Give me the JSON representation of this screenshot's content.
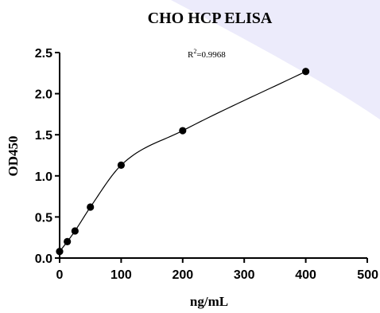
{
  "chart_data": {
    "type": "scatter",
    "title": "CHO HCP ELISA",
    "xlabel": "ng/mL",
    "ylabel": "OD450",
    "xlim": [
      0,
      500
    ],
    "ylim": [
      0,
      2.5
    ],
    "xticks": [
      "0",
      "100",
      "200",
      "300",
      "400",
      "500"
    ],
    "yticks": [
      "0.0",
      "0.5",
      "1.0",
      "1.5",
      "2.0",
      "2.5"
    ],
    "annotation": {
      "r2_label": "R",
      "r2_sup": "2",
      "r2_value": "=0.9968"
    },
    "points": [
      {
        "x": 0,
        "y": 0.08
      },
      {
        "x": 12.5,
        "y": 0.2
      },
      {
        "x": 25,
        "y": 0.33
      },
      {
        "x": 50,
        "y": 0.62
      },
      {
        "x": 100,
        "y": 1.13
      },
      {
        "x": 200,
        "y": 1.55
      },
      {
        "x": 400,
        "y": 2.27
      }
    ],
    "fit": {
      "type": "curve",
      "color": "#000000"
    },
    "marker_color": "#000000",
    "grid": false,
    "legend": "none"
  },
  "colors": {
    "background_accent": "#ecebfb"
  }
}
